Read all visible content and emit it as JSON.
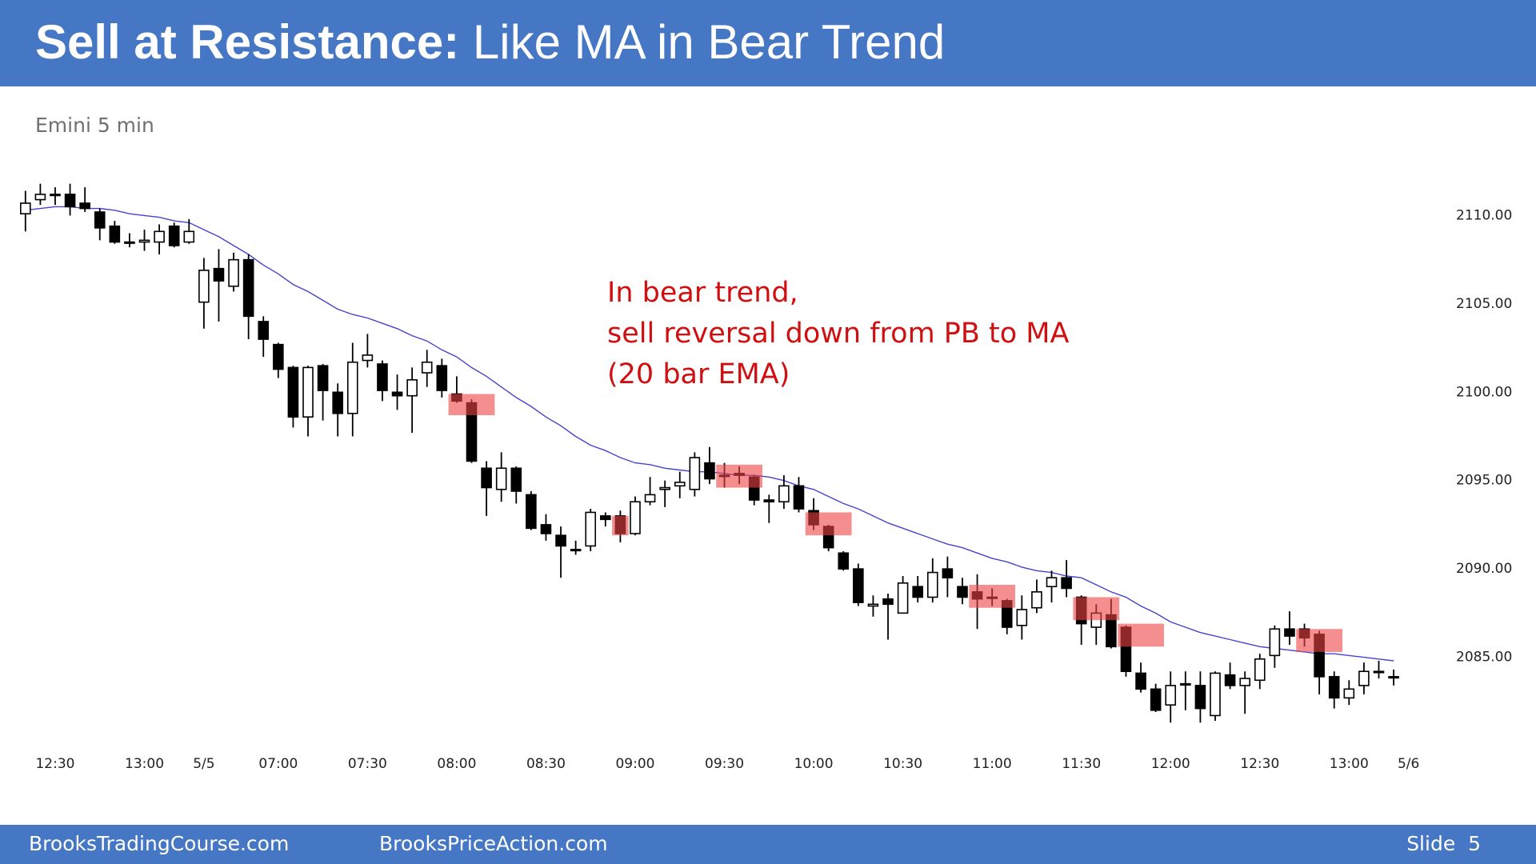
{
  "header": {
    "title_bold": "Sell at Resistance:",
    "title_rest": "Like MA in Bear Trend"
  },
  "footer": {
    "left": "BrooksTradingCourse.com",
    "middle": "BrooksPriceAction.com",
    "slide": "Slide  5"
  },
  "chart_data": {
    "type": "candlestick",
    "subtitle": "Emini 5 min",
    "annotation": [
      "In bear trend,",
      "sell reversal down from PB to MA",
      "(20 bar EMA)"
    ],
    "annotation_color": "#d01010",
    "ylim": [
      2080,
      2115
    ],
    "yticks": [
      {
        "value": 2085,
        "label": "2085.00"
      },
      {
        "value": 2090,
        "label": "2090.00"
      },
      {
        "value": 2095,
        "label": "2095.00"
      },
      {
        "value": 2100,
        "label": "2100.00"
      },
      {
        "value": 2105,
        "label": "2105.00"
      },
      {
        "value": 2110,
        "label": "2110.00"
      }
    ],
    "grid": false,
    "up_color": "#ffffff",
    "down_color": "#000000",
    "categories": [
      null,
      null,
      "12:30",
      null,
      null,
      null,
      null,
      null,
      "13:00",
      null,
      null,
      null,
      "5/5",
      null,
      null,
      null,
      null,
      "07:00",
      null,
      null,
      null,
      null,
      null,
      "07:30",
      null,
      null,
      null,
      null,
      null,
      "08:00",
      null,
      null,
      null,
      null,
      null,
      "08:30",
      null,
      null,
      null,
      null,
      null,
      "09:00",
      null,
      null,
      null,
      null,
      null,
      "09:30",
      null,
      null,
      null,
      null,
      null,
      "10:00",
      null,
      null,
      null,
      null,
      null,
      "10:30",
      null,
      null,
      null,
      null,
      null,
      "11:00",
      null,
      null,
      null,
      null,
      null,
      "11:30",
      null,
      null,
      null,
      null,
      null,
      "12:00",
      null,
      null,
      null,
      null,
      null,
      "12:30",
      null,
      null,
      null,
      null,
      null,
      "13:00",
      null,
      null,
      null,
      "5/6"
    ],
    "open": [
      2110.1,
      2110.9,
      2111.2,
      2111.2,
      2110.7,
      2110.2,
      2109.4,
      2108.5,
      2108.5,
      2108.5,
      2109.4,
      2108.5,
      2105.1,
      2107.0,
      2106.0,
      2107.5,
      2104.0,
      2102.7,
      2101.4,
      2098.6,
      2101.5,
      2100.0,
      2098.8,
      2101.8,
      2101.6,
      2100.0,
      2099.8,
      2101.1,
      2101.5,
      2099.9,
      2099.4,
      2095.7,
      2094.5,
      2095.7,
      2094.2,
      2092.5,
      2091.9,
      2091.1,
      2091.3,
      2093.0,
      2093.0,
      2092.0,
      2093.8,
      2094.5,
      2094.7,
      2094.5,
      2096.0,
      2095.3,
      2095.4,
      2095.2,
      2093.9,
      2093.8,
      2094.7,
      2093.3,
      2092.4,
      2090.9,
      2090.0,
      2087.9,
      2088.3,
      2087.5,
      2089.0,
      2088.4,
      2090.0,
      2089.0,
      2088.7,
      2088.4,
      2088.2,
      2086.8,
      2087.8,
      2089.0,
      2089.5,
      2088.4,
      2086.7,
      2087.4,
      2086.7,
      2084.1,
      2083.2,
      2082.3,
      2083.5,
      2083.4,
      2081.7,
      2084.0,
      2083.4,
      2083.7,
      2085.1,
      2086.6,
      2086.6,
      2086.3,
      2083.9,
      2082.7,
      2083.4,
      2084.2,
      2083.9,
      null
    ],
    "high": [
      2111.4,
      2111.8,
      2111.6,
      2111.8,
      2111.6,
      2110.4,
      2109.7,
      2109.0,
      2109.2,
      2109.5,
      2109.6,
      2109.8,
      2107.6,
      2108.1,
      2107.9,
      2107.8,
      2104.3,
      2102.8,
      2101.5,
      2101.5,
      2101.6,
      2100.5,
      2102.8,
      2103.3,
      2101.8,
      2101.0,
      2101.4,
      2102.4,
      2101.9,
      2100.9,
      2099.6,
      2096.1,
      2096.6,
      2095.8,
      2094.4,
      2093.1,
      2092.4,
      2091.6,
      2093.4,
      2093.2,
      2093.3,
      2094.1,
      2095.2,
      2095.0,
      2095.5,
      2096.6,
      2096.9,
      2096.0,
      2095.8,
      2095.3,
      2094.2,
      2095.3,
      2095.2,
      2094.0,
      2092.5,
      2091.0,
      2090.3,
      2088.5,
      2088.6,
      2089.6,
      2089.6,
      2090.6,
      2090.7,
      2089.5,
      2089.7,
      2088.9,
      2088.3,
      2088.5,
      2089.4,
      2089.9,
      2090.5,
      2088.5,
      2088.0,
      2088.3,
      2086.8,
      2084.7,
      2083.5,
      2084.2,
      2084.2,
      2084.2,
      2084.2,
      2084.7,
      2084.2,
      2085.2,
      2086.8,
      2087.6,
      2086.9,
      2086.5,
      2084.2,
      2083.7,
      2084.7,
      2084.8,
      2084.3,
      null
    ],
    "low": [
      2109.1,
      2110.6,
      2110.6,
      2110.0,
      2110.2,
      2108.6,
      2108.4,
      2108.2,
      2108.0,
      2107.8,
      2108.2,
      2108.4,
      2103.6,
      2104.0,
      2105.7,
      2103.0,
      2102.0,
      2100.8,
      2098.0,
      2097.5,
      2098.4,
      2097.5,
      2097.5,
      2101.4,
      2099.5,
      2099.0,
      2097.7,
      2100.3,
      2099.7,
      2099.4,
      2096.0,
      2093.0,
      2093.8,
      2093.7,
      2092.2,
      2091.6,
      2089.5,
      2090.8,
      2091.0,
      2092.4,
      2091.5,
      2091.9,
      2093.6,
      2093.5,
      2094.0,
      2094.1,
      2094.8,
      2094.6,
      2094.8,
      2093.6,
      2092.6,
      2093.4,
      2093.2,
      2092.2,
      2091.0,
      2089.9,
      2087.9,
      2087.3,
      2086.0,
      2087.5,
      2088.1,
      2088.1,
      2088.4,
      2088.0,
      2086.6,
      2087.9,
      2086.3,
      2086.0,
      2087.5,
      2088.1,
      2088.4,
      2085.7,
      2085.7,
      2085.5,
      2083.9,
      2083.0,
      2081.9,
      2081.3,
      2082.0,
      2081.3,
      2081.4,
      2083.2,
      2081.8,
      2083.2,
      2084.4,
      2085.7,
      2085.6,
      2082.9,
      2082.1,
      2082.3,
      2082.9,
      2083.8,
      2083.4,
      null
    ],
    "close": [
      2110.7,
      2111.2,
      2111.2,
      2110.5,
      2110.4,
      2109.3,
      2108.5,
      2108.5,
      2108.6,
      2109.1,
      2108.3,
      2109.1,
      2106.9,
      2106.3,
      2107.5,
      2104.3,
      2103.0,
      2101.3,
      2098.6,
      2101.4,
      2100.1,
      2098.8,
      2101.7,
      2102.1,
      2100.1,
      2099.8,
      2100.7,
      2101.7,
      2100.1,
      2099.5,
      2096.1,
      2094.6,
      2095.7,
      2094.4,
      2092.3,
      2092.0,
      2091.3,
      2091.1,
      2093.2,
      2092.8,
      2092.0,
      2093.8,
      2094.2,
      2094.6,
      2094.9,
      2096.3,
      2095.1,
      2095.3,
      2095.3,
      2093.9,
      2093.8,
      2094.7,
      2093.4,
      2092.5,
      2091.2,
      2090.0,
      2088.1,
      2088.0,
      2088.0,
      2089.2,
      2088.4,
      2089.8,
      2089.5,
      2088.4,
      2088.3,
      2088.4,
      2086.7,
      2087.7,
      2088.7,
      2089.5,
      2088.9,
      2086.9,
      2087.5,
      2085.6,
      2084.2,
      2083.2,
      2082.0,
      2083.4,
      2083.5,
      2082.1,
      2084.1,
      2083.4,
      2083.8,
      2084.9,
      2086.6,
      2086.2,
      2086.1,
      2083.9,
      2082.7,
      2083.2,
      2084.2,
      2084.2,
      2083.9,
      null
    ],
    "ma": {
      "color": "#4444cc",
      "values": [
        2110.3,
        2110.4,
        2110.5,
        2110.5,
        2110.4,
        2110.4,
        2110.3,
        2110.1,
        2110.0,
        2109.9,
        2109.7,
        2109.6,
        2109.2,
        2108.8,
        2108.3,
        2107.8,
        2107.2,
        2106.7,
        2106.1,
        2105.7,
        2105.2,
        2104.7,
        2104.4,
        2104.2,
        2103.9,
        2103.6,
        2103.2,
        2102.9,
        2102.4,
        2102.0,
        2101.4,
        2100.9,
        2100.3,
        2099.7,
        2099.2,
        2098.6,
        2098.1,
        2097.5,
        2097.0,
        2096.7,
        2096.3,
        2096.0,
        2095.9,
        2095.7,
        2095.6,
        2095.5,
        2095.5,
        2095.4,
        2095.3,
        2095.3,
        2095.2,
        2095.0,
        2094.7,
        2094.5,
        2094.1,
        2093.7,
        2093.4,
        2093.0,
        2092.6,
        2092.3,
        2092.0,
        2091.7,
        2091.4,
        2091.2,
        2090.9,
        2090.6,
        2090.4,
        2090.1,
        2089.9,
        2089.8,
        2089.6,
        2089.5,
        2089.1,
        2088.7,
        2088.4,
        2087.9,
        2087.5,
        2087.0,
        2086.7,
        2086.4,
        2086.2,
        2086.0,
        2085.8,
        2085.6,
        2085.5,
        2085.4,
        2085.3,
        2085.2,
        2085.2,
        2085.1,
        2085.0,
        2084.9,
        2084.8,
        null
      ]
    },
    "highlight_color": "#ee4444",
    "highlights": [
      {
        "bars": [
          29,
          31
        ],
        "high": 2099.9,
        "low": 2098.7
      },
      {
        "bars": [
          40,
          40
        ],
        "high": 2093.0,
        "low": 2091.9
      },
      {
        "bars": [
          47,
          49
        ],
        "high": 2095.9,
        "low": 2094.6
      },
      {
        "bars": [
          53,
          55
        ],
        "high": 2093.2,
        "low": 2091.9
      },
      {
        "bars": [
          64,
          66
        ],
        "high": 2089.1,
        "low": 2087.8
      },
      {
        "bars": [
          71,
          73
        ],
        "high": 2088.4,
        "low": 2087.1
      },
      {
        "bars": [
          74,
          76
        ],
        "high": 2086.9,
        "low": 2085.6
      },
      {
        "bars": [
          86,
          88
        ],
        "high": 2086.6,
        "low": 2085.3
      }
    ]
  }
}
